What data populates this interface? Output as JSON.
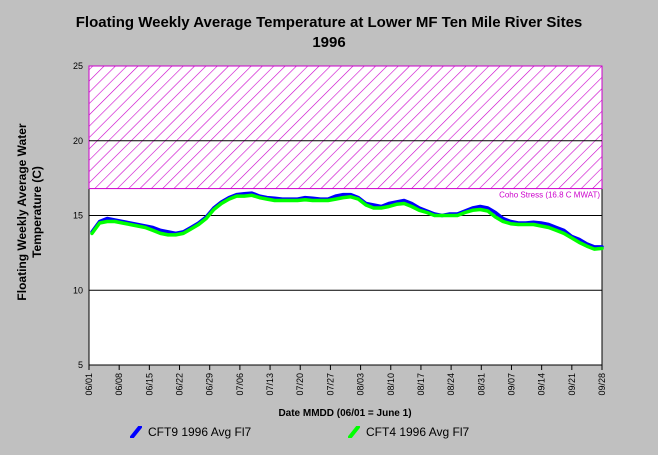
{
  "chart_data": {
    "type": "line",
    "title": "Floating Weekly Average Temperature at Lower MF Ten Mile River Sites\n1996",
    "title_lines": [
      "Floating Weekly Average Temperature at Lower MF Ten Mile River Sites",
      "1996"
    ],
    "xlabel": "Date MMDD (06/01 = June 1)",
    "ylabel": "Floating Weekly Average Water Temperature (C)",
    "ylabel_lines": [
      "Floating Weekly Average Water",
      "Temperature (C)"
    ],
    "ylim": [
      5,
      25
    ],
    "yticks": [
      "5",
      "10",
      "15",
      "20",
      "25"
    ],
    "xticks": [
      "06/01",
      "06/08",
      "06/15",
      "06/22",
      "06/29",
      "07/06",
      "07/13",
      "07/20",
      "07/27",
      "08/03",
      "08/10",
      "08/17",
      "08/24",
      "08/31",
      "09/07",
      "09/14",
      "09/21",
      "09/28"
    ],
    "grid": "horizontal",
    "threshold": {
      "label": "Coho Stress (16.8 C MWAT)",
      "value": 16.8,
      "color": "#cc00cc",
      "region": [
        16.8,
        25
      ]
    },
    "legend_position": "bottom",
    "series": [
      {
        "name": "CFT9 1996 Avg Fl7",
        "color": "#0000ff",
        "values": [
          13.9,
          14.6,
          14.8,
          14.7,
          14.6,
          14.5,
          14.4,
          14.3,
          14.2,
          14.0,
          13.9,
          13.8,
          13.9,
          14.2,
          14.5,
          14.9,
          15.5,
          15.9,
          16.2,
          16.4,
          16.45,
          16.5,
          16.3,
          16.2,
          16.15,
          16.1,
          16.1,
          16.1,
          16.2,
          16.15,
          16.1,
          16.1,
          16.3,
          16.4,
          16.4,
          16.2,
          15.8,
          15.7,
          15.6,
          15.8,
          15.9,
          16.0,
          15.8,
          15.5,
          15.3,
          15.1,
          15.0,
          15.1,
          15.1,
          15.3,
          15.5,
          15.6,
          15.5,
          15.2,
          14.8,
          14.6,
          14.5,
          14.5,
          14.55,
          14.5,
          14.4,
          14.2,
          14.0,
          13.6,
          13.4,
          13.1,
          12.9,
          12.9
        ]
      },
      {
        "name": "CFT4 1996 Avg Fl7",
        "color": "#00ff00",
        "values": [
          13.8,
          14.5,
          14.6,
          14.6,
          14.5,
          14.4,
          14.3,
          14.2,
          14.0,
          13.8,
          13.7,
          13.7,
          13.8,
          14.1,
          14.4,
          14.8,
          15.4,
          15.8,
          16.1,
          16.3,
          16.3,
          16.35,
          16.2,
          16.1,
          16.0,
          16.0,
          16.0,
          16.0,
          16.05,
          16.0,
          16.0,
          16.0,
          16.1,
          16.2,
          16.25,
          16.1,
          15.7,
          15.5,
          15.5,
          15.6,
          15.75,
          15.8,
          15.6,
          15.35,
          15.2,
          15.0,
          15.0,
          15.0,
          15.0,
          15.2,
          15.35,
          15.4,
          15.3,
          14.9,
          14.6,
          14.45,
          14.4,
          14.4,
          14.4,
          14.3,
          14.2,
          14.0,
          13.8,
          13.5,
          13.2,
          12.95,
          12.75,
          12.8
        ]
      }
    ]
  }
}
